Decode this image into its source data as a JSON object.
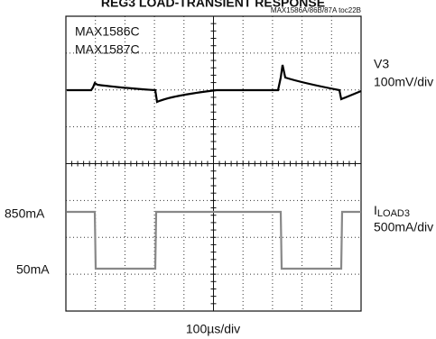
{
  "title": "REG3 LOAD-TRANSIENT RESPONSE",
  "figure_tag": "MAX1586A/86B/87A toc22B",
  "parts": [
    "MAX1586C",
    "MAX1587C"
  ],
  "channel1": {
    "name": "V3",
    "scale": "100mV/div"
  },
  "channel2": {
    "name": "I",
    "name_sub": "LOAD3",
    "scale": "500mA/div",
    "levels": [
      "850mA",
      "50mA"
    ]
  },
  "timebase": "100µs/div"
}
